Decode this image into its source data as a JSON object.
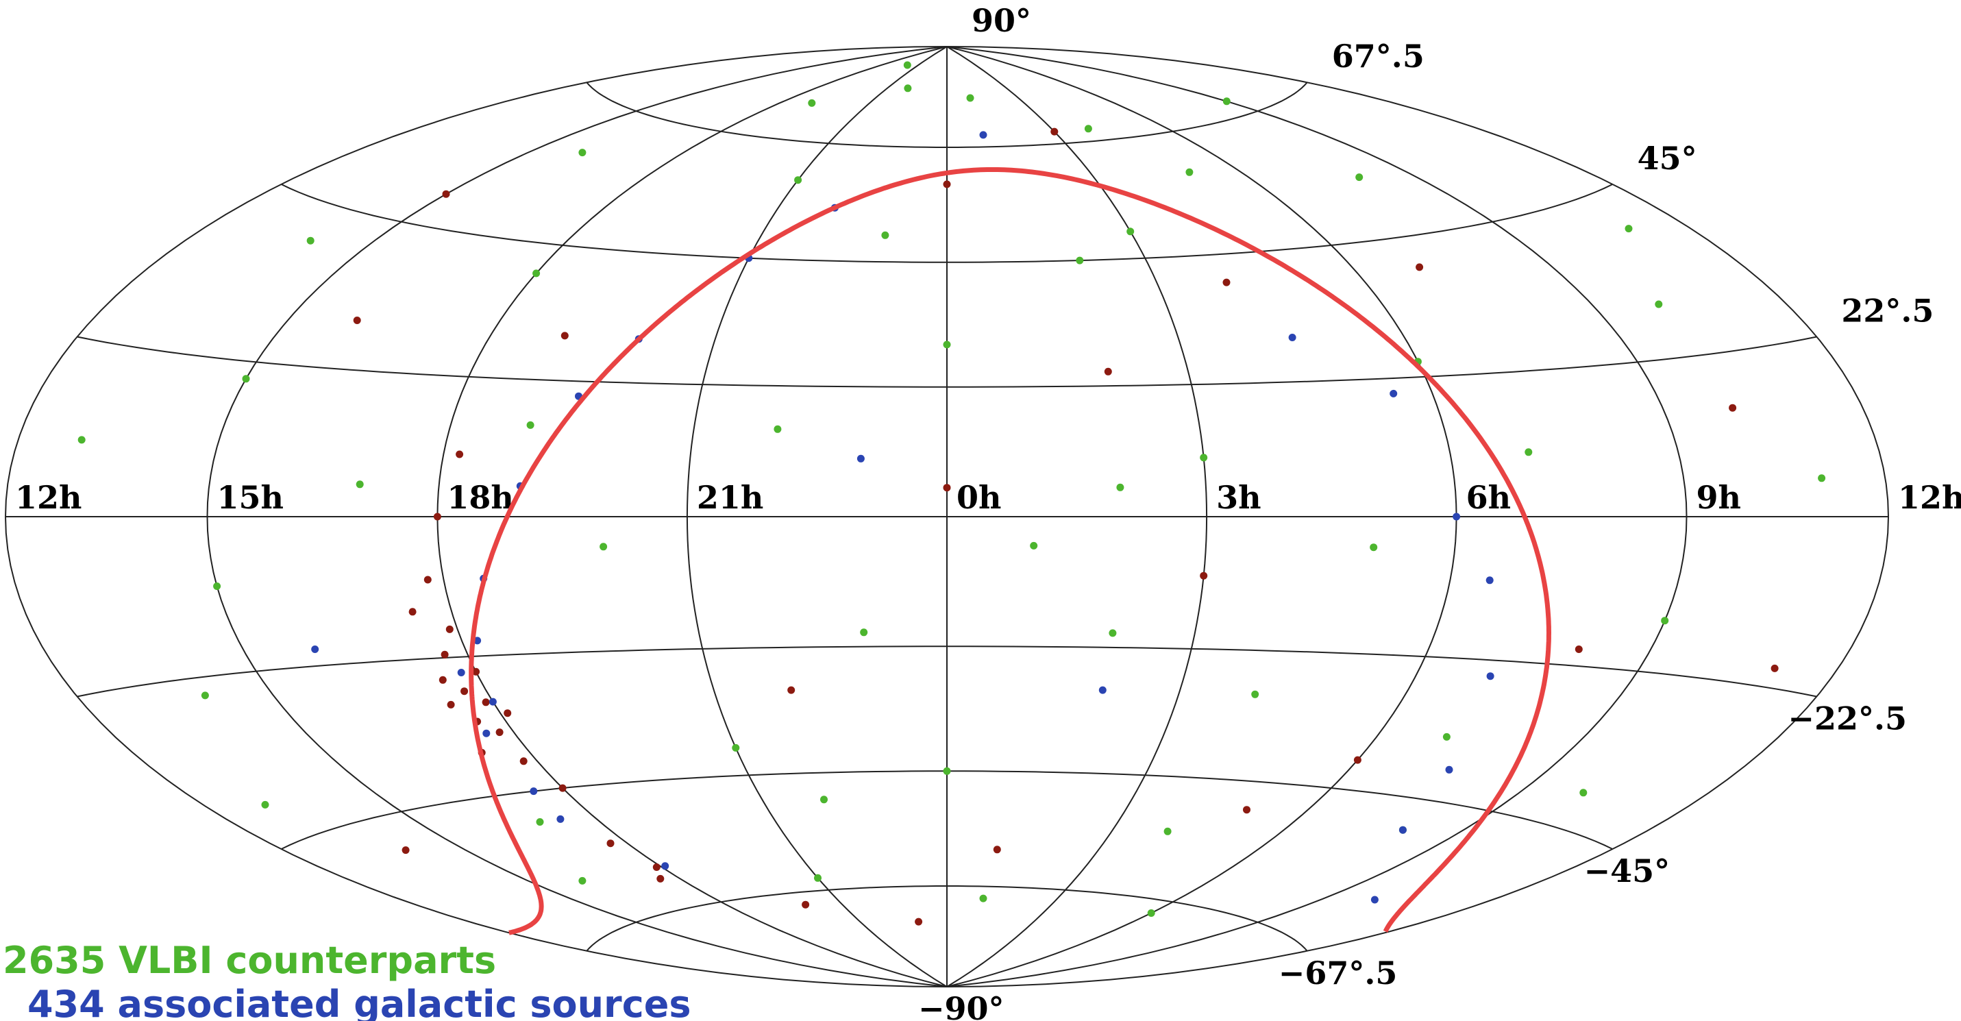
{
  "chart_data": {
    "type": "scatter",
    "projection": "hammer",
    "xlim": [
      -12,
      12
    ],
    "ylim": [
      -90,
      90
    ],
    "xticks": [
      {
        "value": -12,
        "label": "12h"
      },
      {
        "value": -9,
        "label": "15h"
      },
      {
        "value": -6,
        "label": "18h"
      },
      {
        "value": -3,
        "label": "21h"
      },
      {
        "value": 0,
        "label": "0h"
      },
      {
        "value": 3,
        "label": "3h"
      },
      {
        "value": 6,
        "label": "6h"
      },
      {
        "value": 9,
        "label": "9h"
      },
      {
        "value": 12,
        "label": "12h"
      }
    ],
    "yticks": [
      {
        "value": 90,
        "label": "90°"
      },
      {
        "value": 67.5,
        "label": "67°.5"
      },
      {
        "value": 45,
        "label": "45°"
      },
      {
        "value": 22.5,
        "label": "22°.5"
      },
      {
        "value": -22.5,
        "label": "−22°.5"
      },
      {
        "value": -45,
        "label": "−45°"
      },
      {
        "value": -67.5,
        "label": "−67°.5"
      },
      {
        "value": -90,
        "label": "−90°"
      }
    ],
    "grid": true,
    "series": [
      {
        "name": "2635 VLBI counterparts",
        "color": "#4cb52e",
        "x": [
          -10,
          -8,
          -5,
          -2,
          1,
          4,
          8,
          10,
          11,
          9,
          7,
          4,
          1,
          -3,
          -7,
          -10,
          -11,
          -9,
          -7,
          -4,
          -2,
          0,
          2,
          3,
          5,
          6,
          -1,
          -3,
          0,
          2,
          4,
          7,
          8,
          10,
          -9,
          -6,
          -3,
          3,
          1,
          -1,
          5,
          -11,
          11,
          -8,
          6,
          -5,
          2,
          -2,
          9,
          -4
        ],
        "values": [
          40,
          60,
          75,
          80,
          78,
          70,
          55,
          30,
          5,
          -15,
          -35,
          -55,
          -70,
          -65,
          -50,
          -25,
          10,
          20,
          5,
          -5,
          15,
          30,
          45,
          10,
          -5,
          25,
          -20,
          -40,
          -45,
          -20,
          -30,
          10,
          -50,
          -40,
          -10,
          40,
          60,
          50,
          -5,
          50,
          60,
          -40,
          40,
          -60,
          -70,
          15,
          5,
          -50,
          70,
          85
        ]
      },
      {
        "name": "434 associated galactic sources",
        "color": "#2a44b2",
        "x": [
          -6.2,
          -6.0,
          -5.8,
          -6.4,
          -5.5,
          -5,
          -4.5,
          -4,
          -3,
          -2,
          4.5,
          5.5,
          6,
          6.5,
          7,
          7.5,
          8,
          -6.5,
          -6.6,
          -5.9,
          2,
          -1,
          10,
          1,
          -8
        ],
        "values": [
          -25,
          -30,
          -20,
          -35,
          -10,
          5,
          20,
          30,
          45,
          55,
          30,
          20,
          0,
          -10,
          -25,
          -40,
          -50,
          -45,
          -50,
          -60,
          -30,
          10,
          -60,
          70,
          -20
        ]
      },
      {
        "color": "#8c1a10",
        "x": [
          -6.3,
          -6.1,
          -6.4,
          -6.0,
          -6.5,
          -6.2,
          -6.3,
          -5.9,
          -6.6,
          -6.1,
          -6.2,
          -6.0,
          -6.3,
          -6.1,
          -6.4,
          -6.2,
          -6.0,
          -5.8,
          -6.5,
          -6.7,
          -9,
          -5,
          0,
          3,
          7,
          10,
          8,
          5,
          1,
          -2,
          0,
          3,
          -10,
          -8,
          11,
          4,
          -1,
          6,
          2,
          -4
        ],
        "values": [
          -28,
          -30,
          -33,
          -25,
          -26,
          -35,
          -22,
          -32,
          -30,
          -18,
          -40,
          -45,
          -55,
          -60,
          -62,
          -10,
          0,
          10,
          -15,
          -38,
          50,
          30,
          60,
          70,
          40,
          15,
          -20,
          -50,
          -60,
          -30,
          5,
          -10,
          -50,
          30,
          -20,
          40,
          -75,
          -40,
          25,
          -70
        ]
      }
    ],
    "galactic_plane_color": "#e84343"
  }
}
